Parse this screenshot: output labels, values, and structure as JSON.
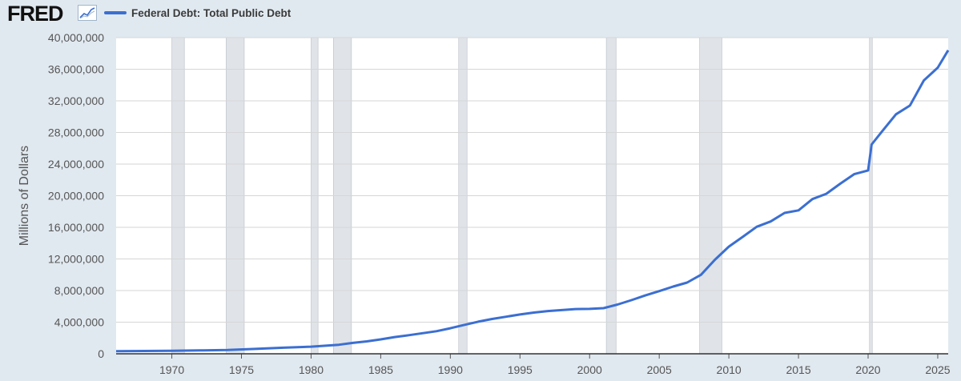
{
  "header": {
    "logo": "FRED",
    "legend_label": "Federal Debt: Total Public Debt"
  },
  "colors": {
    "series": "#3b6fd1",
    "background": "#e1e9f0",
    "plot_background": "#ffffff",
    "recession": "#e0e4e9"
  },
  "icons": {
    "logo_chart": "chart-line-icon"
  },
  "chart_data": {
    "type": "line",
    "title": "",
    "series": [
      {
        "name": "Federal Debt: Total Public Debt",
        "values": [
          [
            1966.0,
            320000
          ],
          [
            1968.0,
            350000
          ],
          [
            1970.0,
            380000
          ],
          [
            1972.0,
            430000
          ],
          [
            1974.0,
            480000
          ],
          [
            1976.0,
            620000
          ],
          [
            1978.0,
            770000
          ],
          [
            1980.0,
            900000
          ],
          [
            1982.0,
            1140000
          ],
          [
            1983.0,
            1380000
          ],
          [
            1984.0,
            1570000
          ],
          [
            1985.0,
            1820000
          ],
          [
            1986.0,
            2120000
          ],
          [
            1987.0,
            2350000
          ],
          [
            1988.0,
            2600000
          ],
          [
            1989.0,
            2860000
          ],
          [
            1990.0,
            3230000
          ],
          [
            1991.0,
            3660000
          ],
          [
            1992.0,
            4060000
          ],
          [
            1993.0,
            4410000
          ],
          [
            1994.0,
            4690000
          ],
          [
            1995.0,
            4970000
          ],
          [
            1996.0,
            5220000
          ],
          [
            1997.0,
            5410000
          ],
          [
            1998.0,
            5530000
          ],
          [
            1999.0,
            5660000
          ],
          [
            2000.0,
            5680000
          ],
          [
            2001.0,
            5770000
          ],
          [
            2002.0,
            6230000
          ],
          [
            2003.0,
            6780000
          ],
          [
            2004.0,
            7380000
          ],
          [
            2005.0,
            7930000
          ],
          [
            2006.0,
            8510000
          ],
          [
            2007.0,
            9010000
          ],
          [
            2008.0,
            9990000
          ],
          [
            2009.0,
            11900000
          ],
          [
            2010.0,
            13560000
          ],
          [
            2011.0,
            14790000
          ],
          [
            2012.0,
            16070000
          ],
          [
            2013.0,
            16740000
          ],
          [
            2014.0,
            17820000
          ],
          [
            2015.0,
            18150000
          ],
          [
            2016.0,
            19570000
          ],
          [
            2017.0,
            20240000
          ],
          [
            2018.0,
            21520000
          ],
          [
            2019.0,
            22720000
          ],
          [
            2020.0,
            23200000
          ],
          [
            2020.25,
            26480000
          ],
          [
            2021.0,
            28130000
          ],
          [
            2022.0,
            30300000
          ],
          [
            2023.0,
            31400000
          ],
          [
            2024.0,
            34580000
          ],
          [
            2025.0,
            36200000
          ],
          [
            2025.75,
            38400000
          ]
        ]
      }
    ],
    "ylabel": "Millions of Dollars",
    "xlabel": "",
    "ylim": [
      0,
      40000000
    ],
    "xlim": [
      1966.0,
      2025.75
    ],
    "y_ticks": [
      0,
      4000000,
      8000000,
      12000000,
      16000000,
      20000000,
      24000000,
      28000000,
      32000000,
      36000000,
      40000000
    ],
    "y_tick_labels": [
      "0",
      "4,000,000",
      "8,000,000",
      "12,000,000",
      "16,000,000",
      "20,000,000",
      "24,000,000",
      "28,000,000",
      "32,000,000",
      "36,000,000",
      "40,000,000"
    ],
    "x_ticks": [
      1970,
      1975,
      1980,
      1985,
      1990,
      1995,
      2000,
      2005,
      2010,
      2015,
      2020,
      2025
    ],
    "x_tick_labels": [
      "1970",
      "1975",
      "1980",
      "1985",
      "1990",
      "1995",
      "2000",
      "2005",
      "2010",
      "2015",
      "2020",
      "2025"
    ],
    "recessions": [
      [
        1970.0,
        1970.9
      ],
      [
        1973.9,
        1975.2
      ],
      [
        1980.0,
        1980.5
      ],
      [
        1981.6,
        1982.9
      ],
      [
        1990.6,
        1991.2
      ],
      [
        2001.2,
        2001.9
      ],
      [
        2007.9,
        2009.5
      ],
      [
        2020.1,
        2020.3
      ]
    ],
    "grid": "horizontal",
    "legend_position": "top-left"
  }
}
